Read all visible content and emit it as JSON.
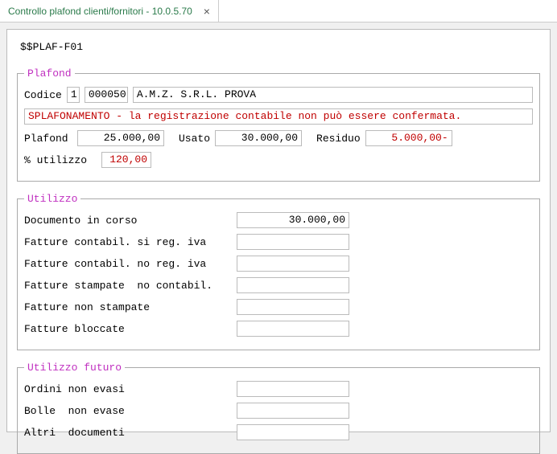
{
  "tab": {
    "title": "Controllo plafond clienti/fornitori   -   10.0.5.70"
  },
  "form_id": "$$PLAF-F01",
  "plafond": {
    "legend": "Plafond",
    "codice_label": "Codice",
    "codice1": "1",
    "codice2": "000050",
    "nome": "A.M.Z.  S.R.L.       PROVA",
    "warning": "SPLAFONAMENTO - la registrazione contabile non può essere confermata.",
    "plafond_label": "Plafond",
    "plafond_val": "25.000,00",
    "usato_label": "Usato",
    "usato_val": "30.000,00",
    "residuo_label": "Residuo",
    "residuo_val": "5.000,00-",
    "pct_label": "% utilizzo",
    "pct_val": "120,00"
  },
  "utilizzo": {
    "legend": "Utilizzo",
    "rows": [
      {
        "label": "Documento in corso",
        "value": "30.000,00"
      },
      {
        "label": "Fatture contabil. si reg. iva",
        "value": ""
      },
      {
        "label": "Fatture contabil. no reg. iva",
        "value": ""
      },
      {
        "label": "Fatture stampate  no contabil.",
        "value": ""
      },
      {
        "label": "Fatture non stampate",
        "value": ""
      },
      {
        "label": "Fatture bloccate",
        "value": ""
      }
    ]
  },
  "futuro": {
    "legend": "Utilizzo futuro",
    "rows": [
      {
        "label": "Ordini non evasi",
        "value": ""
      },
      {
        "label": "Bolle  non evase",
        "value": ""
      },
      {
        "label": "Altri  documenti",
        "value": ""
      }
    ]
  }
}
